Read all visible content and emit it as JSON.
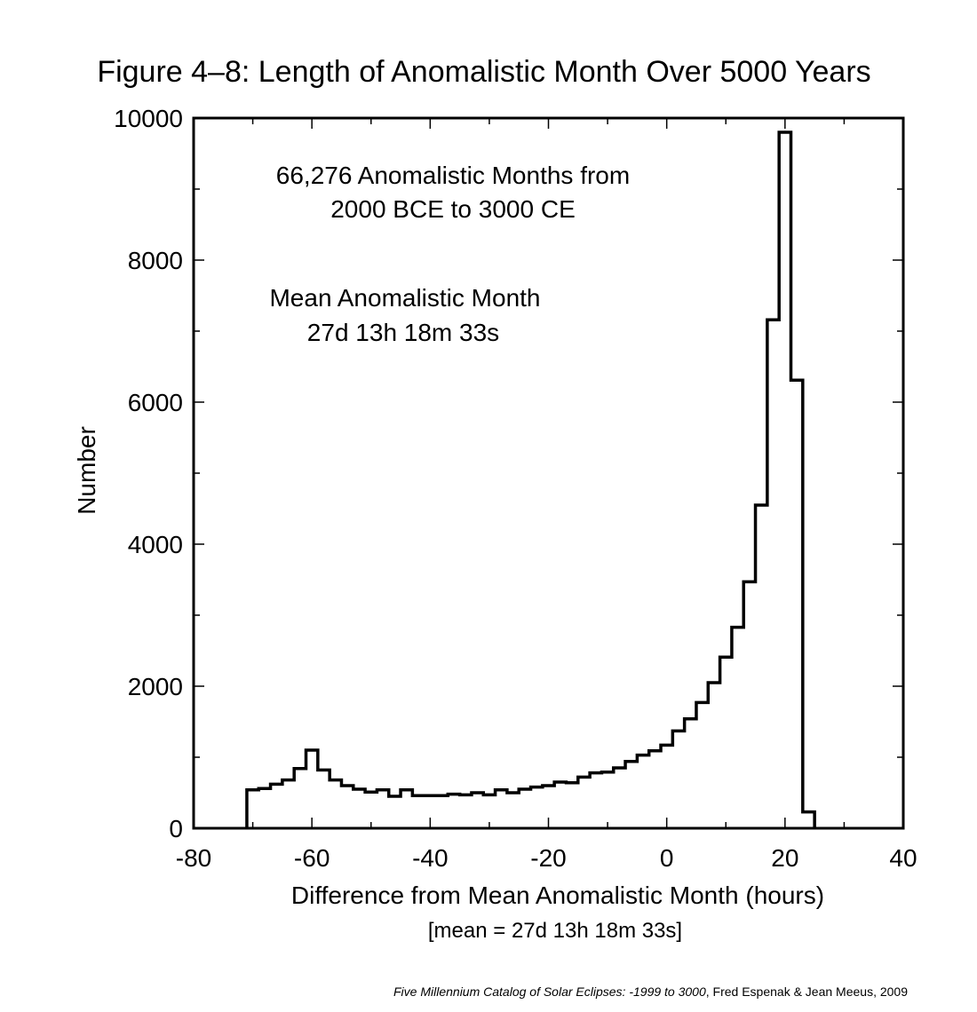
{
  "chart_data": {
    "type": "bar",
    "title": "Figure 4–8:  Length of Anomalistic Month Over 5000 Years",
    "xlabel": "Difference from Mean Anomalistic Month (hours)",
    "xlabel_sub": "[mean = 27d 13h 18m 33s]",
    "ylabel": "Number",
    "xlim": [
      -80,
      40
    ],
    "ylim": [
      0,
      10000
    ],
    "xticks": [
      -80,
      -60,
      -40,
      -20,
      0,
      20,
      40
    ],
    "xtick_labels": [
      "-80",
      "-60",
      "-40",
      "-20",
      "0",
      "20",
      "40"
    ],
    "yticks": [
      0,
      2000,
      4000,
      6000,
      8000,
      10000
    ],
    "ytick_labels": [
      "0",
      "2000",
      "4000",
      "6000",
      "8000",
      "10000"
    ],
    "grid": false,
    "bin_width": 2,
    "bin_starts": [
      -71,
      -69,
      -67,
      -65,
      -63,
      -61,
      -59,
      -57,
      -55,
      -53,
      -51,
      -49,
      -47,
      -45,
      -43,
      -41,
      -39,
      -37,
      -35,
      -33,
      -31,
      -29,
      -27,
      -25,
      -23,
      -21,
      -19,
      -17,
      -15,
      -13,
      -11,
      -9,
      -7,
      -5,
      -3,
      -1,
      1,
      3,
      5,
      7,
      9,
      11,
      13,
      15,
      17,
      19,
      21,
      23
    ],
    "values": [
      540,
      560,
      620,
      680,
      840,
      1100,
      820,
      680,
      600,
      550,
      510,
      540,
      450,
      540,
      460,
      460,
      460,
      480,
      470,
      500,
      470,
      540,
      500,
      550,
      580,
      600,
      650,
      640,
      720,
      780,
      790,
      850,
      940,
      1030,
      1090,
      1170,
      1370,
      1540,
      1770,
      2050,
      2410,
      2830,
      3470,
      4550,
      7160,
      9800,
      6310,
      230
    ],
    "annotations": [
      "66,276 Anomalistic Months from",
      "2000 BCE to 3000 CE",
      "Mean Anomalistic Month",
      "27d 13h 18m 33s"
    ],
    "credit_italic": "Five Millennium Catalog of Solar Eclipses: -1999 to 3000",
    "credit_rest": ", Fred Espenak & Jean Meeus, 2009"
  }
}
